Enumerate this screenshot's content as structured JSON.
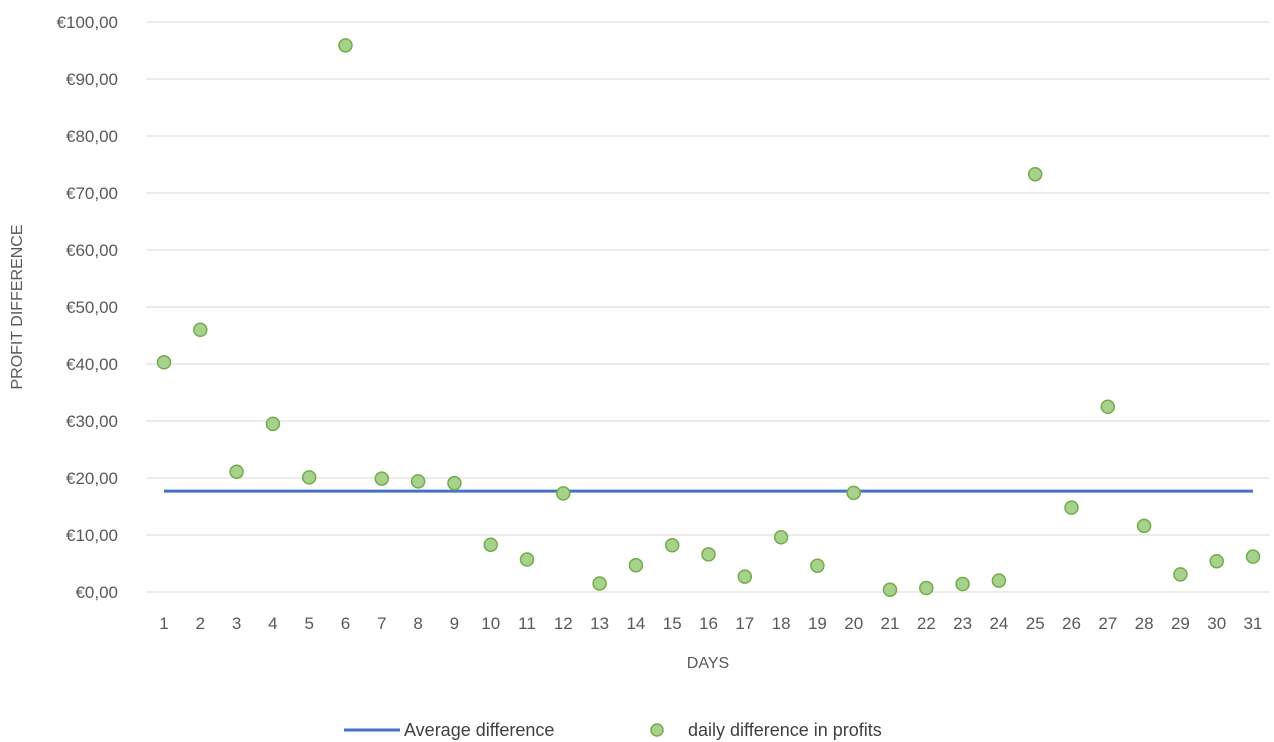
{
  "chart_data": {
    "type": "scatter",
    "title": "",
    "xlabel": "DAYS",
    "ylabel": "PROFIT DIFFERENCE",
    "x_ticks": [
      "1",
      "2",
      "3",
      "4",
      "5",
      "6",
      "7",
      "8",
      "9",
      "10",
      "11",
      "12",
      "13",
      "14",
      "15",
      "16",
      "17",
      "18",
      "19",
      "20",
      "21",
      "22",
      "23",
      "24",
      "25",
      "26",
      "27",
      "28",
      "29",
      "30",
      "31"
    ],
    "y_ticks": [
      "€0,00",
      "€10,00",
      "€20,00",
      "€30,00",
      "€40,00",
      "€50,00",
      "€60,00",
      "€70,00",
      "€80,00",
      "€90,00",
      "€100,00"
    ],
    "ylim": [
      0,
      100
    ],
    "grid": true,
    "legend_position": "bottom",
    "series": [
      {
        "name": "Average difference",
        "kind": "line",
        "color": "#4472c4",
        "x": [
          1,
          31
        ],
        "values": [
          17.7,
          17.7
        ]
      },
      {
        "name": "daily difference in profits",
        "kind": "scatter",
        "color": "#a9d18e",
        "edge_color": "#70ad47",
        "x": [
          1,
          2,
          3,
          4,
          5,
          6,
          7,
          8,
          9,
          10,
          11,
          12,
          13,
          14,
          15,
          16,
          17,
          18,
          19,
          20,
          21,
          22,
          23,
          24,
          25,
          26,
          27,
          28,
          29,
          30,
          31
        ],
        "values": [
          40.3,
          46.0,
          21.1,
          29.5,
          20.1,
          95.9,
          19.9,
          19.4,
          19.1,
          8.3,
          5.7,
          17.3,
          1.5,
          4.7,
          8.2,
          6.6,
          2.7,
          9.6,
          4.6,
          17.4,
          0.4,
          0.7,
          1.4,
          2.0,
          73.3,
          14.8,
          32.5,
          11.6,
          3.1,
          5.4,
          6.2
        ]
      }
    ]
  }
}
